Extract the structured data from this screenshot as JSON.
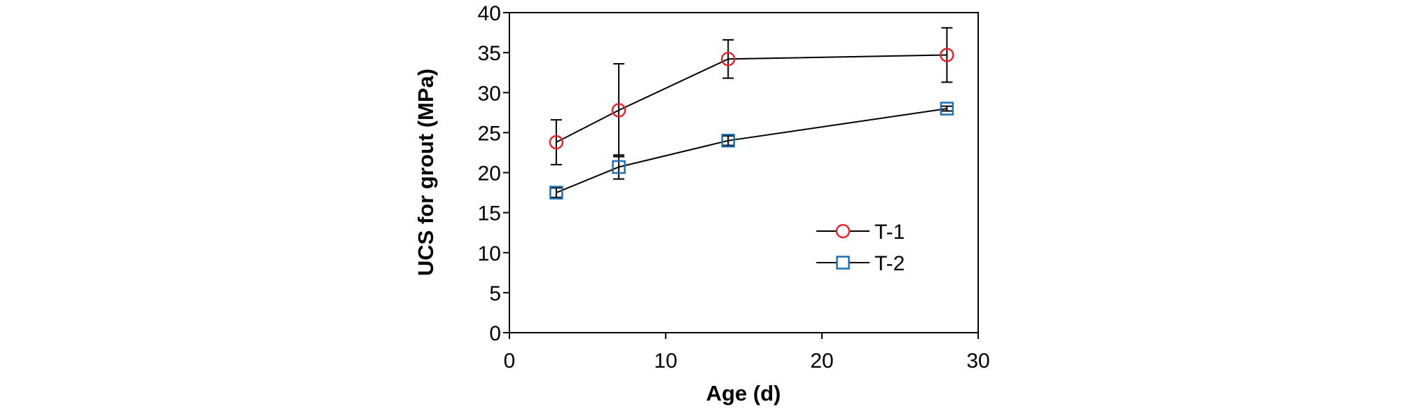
{
  "chart_data": {
    "type": "line",
    "xlabel": "Age (d)",
    "ylabel": "UCS for grout (MPa)",
    "xlim": [
      0,
      30
    ],
    "ylim": [
      0,
      40
    ],
    "x_ticks": [
      0,
      10,
      20,
      30
    ],
    "y_ticks": [
      0,
      5,
      10,
      15,
      20,
      25,
      30,
      35,
      40
    ],
    "grid": false,
    "legend_position": "bottom-right",
    "series": [
      {
        "name": "T-1",
        "marker": "circle",
        "marker_color": "#e8262a",
        "line_color": "#000000",
        "x": [
          3,
          7,
          14,
          28
        ],
        "y": [
          23.8,
          27.8,
          34.2,
          34.7
        ],
        "error": [
          2.8,
          5.8,
          2.4,
          3.4
        ]
      },
      {
        "name": "T-2",
        "marker": "square",
        "marker_color": "#1f6fb5",
        "line_color": "#000000",
        "x": [
          3,
          7,
          14,
          28
        ],
        "y": [
          17.5,
          20.7,
          24.0,
          28.0
        ],
        "error": [
          0.6,
          1.5,
          0.6,
          0.3
        ]
      }
    ]
  }
}
